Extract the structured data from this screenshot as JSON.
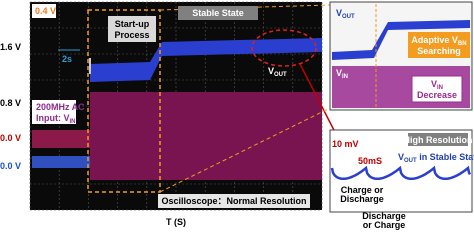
{
  "main_scope": {
    "scale_v": "0.4 V",
    "scale_t": "2s",
    "y_labels": [
      "1.6 V",
      "0.8 V",
      "0.0 V",
      "0.0 V"
    ],
    "startup": [
      "Start-up",
      "Process"
    ],
    "stable": "Stable State",
    "vout": {
      "main": "V",
      "sub": "OUT"
    },
    "vin_label": {
      "line1": "200MHz AC",
      "main": "Input: V",
      "sub": "IN"
    },
    "footer": "Oscilloscope：Normal Resolution",
    "x_label": "T (S)"
  },
  "zoom_panel": {
    "vout": {
      "main": "V",
      "sub": "OUT"
    },
    "adaptive": {
      "main": "Adaptive V",
      "sub": "BN",
      "line2": "Searching"
    },
    "vin": {
      "main": "V",
      "sub": "IN"
    },
    "decrease": {
      "main": "V",
      "sub": "IN",
      "line2": "Decrease"
    }
  },
  "resolution_panel": {
    "scale_v": "10 mV",
    "scale_t": "50mS",
    "title": "High Resolution",
    "vout_state": {
      "main": "V",
      "sub": "OUT",
      "rest": " in Stable State"
    },
    "charge": [
      "Charge or",
      "Discharge"
    ],
    "discharge": [
      "Discharge",
      "or Charge"
    ]
  }
}
